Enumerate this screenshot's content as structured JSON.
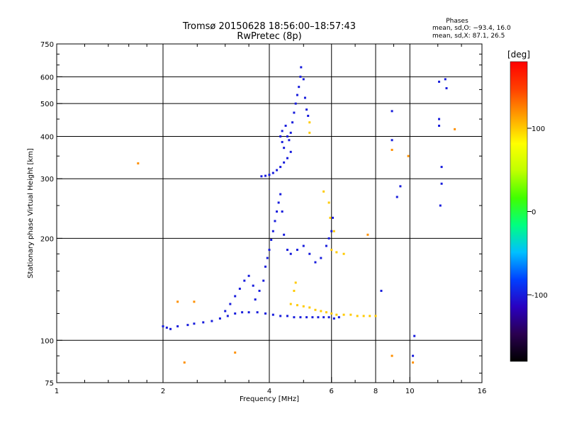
{
  "chart_data": {
    "type": "scatter",
    "title": "Tromsø 20150628 18:56:00–18:57:43",
    "subtitle": "RwPretec (8p)",
    "xlabel": "Frequency [MHz]",
    "ylabel": "Stationary phase Virtual Height [km]",
    "x_scale": "log",
    "y_scale": "log",
    "xlim": [
      1,
      16
    ],
    "ylim": [
      75,
      750
    ],
    "x_ticks": [
      1,
      2,
      4,
      6,
      8,
      10,
      16
    ],
    "y_ticks": [
      75,
      100,
      200,
      300,
      400,
      500,
      600,
      750
    ],
    "grid": true,
    "stats": {
      "heading": "Phases",
      "o_line": "mean, sd,O: −93.4, 16.0",
      "x_line": "mean, sd,X:  87.1, 26.5"
    },
    "colorbar": {
      "label": "[deg]",
      "range": [
        -180,
        180
      ],
      "ticks": [
        100,
        0,
        -100
      ],
      "colors": [
        "#000000",
        "#2a0050",
        "#2a00c0",
        "#0040ff",
        "#00c0ff",
        "#00ff80",
        "#40ff00",
        "#c0ff00",
        "#ffff00",
        "#ffa000",
        "#ff4000",
        "#ff0000"
      ]
    },
    "series": [
      {
        "trace": "ordinary-lower",
        "phase": -100,
        "points": [
          [
            2.0,
            110
          ],
          [
            2.05,
            109
          ],
          [
            2.1,
            108
          ],
          [
            2.2,
            110
          ],
          [
            2.35,
            111
          ],
          [
            2.45,
            112
          ],
          [
            2.6,
            113
          ],
          [
            2.75,
            114
          ],
          [
            2.9,
            116
          ],
          [
            3.05,
            118
          ],
          [
            3.2,
            120
          ],
          [
            3.35,
            121
          ],
          [
            3.5,
            121
          ],
          [
            3.7,
            121
          ],
          [
            3.9,
            120
          ],
          [
            4.1,
            119
          ],
          [
            4.3,
            118
          ],
          [
            4.5,
            118
          ],
          [
            4.7,
            117
          ],
          [
            4.9,
            117
          ],
          [
            5.1,
            117
          ],
          [
            5.3,
            117
          ],
          [
            5.5,
            117
          ],
          [
            5.7,
            117
          ],
          [
            5.9,
            117
          ],
          [
            6.1,
            116
          ],
          [
            6.3,
            117
          ]
        ]
      },
      {
        "trace": "ordinary-rising",
        "phase": -100,
        "points": [
          [
            3.0,
            122
          ],
          [
            3.1,
            128
          ],
          [
            3.2,
            135
          ],
          [
            3.3,
            142
          ],
          [
            3.4,
            150
          ],
          [
            3.5,
            155
          ],
          [
            3.6,
            145
          ],
          [
            3.65,
            132
          ],
          [
            3.75,
            140
          ],
          [
            3.85,
            150
          ],
          [
            3.9,
            165
          ],
          [
            3.95,
            175
          ],
          [
            4.0,
            185
          ],
          [
            4.05,
            198
          ],
          [
            4.1,
            210
          ],
          [
            4.15,
            225
          ],
          [
            4.2,
            240
          ],
          [
            4.25,
            255
          ],
          [
            4.3,
            270
          ],
          [
            4.35,
            240
          ],
          [
            4.4,
            205
          ],
          [
            4.5,
            185
          ],
          [
            4.6,
            180
          ],
          [
            4.8,
            185
          ],
          [
            5.0,
            190
          ],
          [
            5.2,
            180
          ],
          [
            5.4,
            170
          ],
          [
            5.6,
            175
          ],
          [
            5.8,
            190
          ],
          [
            5.9,
            200
          ],
          [
            6.0,
            210
          ],
          [
            6.05,
            230
          ]
        ]
      },
      {
        "trace": "f-layer",
        "phase": -100,
        "points": [
          [
            3.8,
            305
          ],
          [
            3.9,
            306
          ],
          [
            4.0,
            308
          ],
          [
            4.1,
            312
          ],
          [
            4.2,
            318
          ],
          [
            4.3,
            325
          ],
          [
            4.4,
            335
          ],
          [
            4.5,
            345
          ],
          [
            4.6,
            360
          ],
          [
            4.4,
            370
          ],
          [
            4.35,
            385
          ],
          [
            4.3,
            400
          ],
          [
            4.35,
            415
          ],
          [
            4.45,
            430
          ],
          [
            4.5,
            400
          ],
          [
            4.55,
            390
          ],
          [
            4.6,
            410
          ],
          [
            4.65,
            440
          ],
          [
            4.7,
            470
          ],
          [
            4.75,
            500
          ],
          [
            4.8,
            530
          ],
          [
            4.85,
            560
          ],
          [
            4.9,
            600
          ],
          [
            4.92,
            640
          ],
          [
            5.0,
            590
          ],
          [
            5.05,
            520
          ],
          [
            5.1,
            480
          ],
          [
            5.15,
            460
          ]
        ]
      },
      {
        "trace": "extraordinary",
        "phase": 100,
        "points": [
          [
            4.6,
            128
          ],
          [
            4.8,
            127
          ],
          [
            5.0,
            126
          ],
          [
            5.2,
            125
          ],
          [
            5.4,
            123
          ],
          [
            5.6,
            122
          ],
          [
            5.8,
            121
          ],
          [
            6.0,
            120
          ],
          [
            6.2,
            119
          ],
          [
            6.5,
            119
          ],
          [
            6.8,
            119
          ],
          [
            7.1,
            118
          ],
          [
            7.4,
            118
          ],
          [
            7.7,
            118
          ],
          [
            8.0,
            118
          ],
          [
            4.7,
            140
          ],
          [
            4.75,
            148
          ],
          [
            6.0,
            185
          ],
          [
            6.2,
            182
          ],
          [
            6.5,
            180
          ],
          [
            5.7,
            275
          ],
          [
            5.9,
            255
          ],
          [
            5.95,
            230
          ],
          [
            6.1,
            210
          ],
          [
            5.2,
            410
          ],
          [
            5.2,
            440
          ]
        ]
      },
      {
        "trace": "scattered",
        "phase": -100,
        "points": [
          [
            8.9,
            475
          ],
          [
            8.9,
            390
          ],
          [
            12.1,
            580
          ],
          [
            12.6,
            590
          ],
          [
            12.7,
            555
          ],
          [
            12.1,
            450
          ],
          [
            12.1,
            430
          ],
          [
            12.3,
            325
          ],
          [
            12.3,
            290
          ],
          [
            12.2,
            250
          ],
          [
            10.3,
            103
          ],
          [
            10.2,
            90
          ],
          [
            9.4,
            285
          ],
          [
            9.2,
            265
          ],
          [
            8.3,
            140
          ]
        ]
      },
      {
        "trace": "scattered-positive",
        "phase": 120,
        "points": [
          [
            1.7,
            333
          ],
          [
            2.2,
            130
          ],
          [
            2.45,
            130
          ],
          [
            2.3,
            86
          ],
          [
            8.9,
            365
          ],
          [
            8.9,
            90
          ],
          [
            13.4,
            420
          ],
          [
            10.2,
            86
          ],
          [
            7.6,
            205
          ],
          [
            9.9,
            350
          ],
          [
            3.2,
            92
          ]
        ]
      }
    ]
  }
}
